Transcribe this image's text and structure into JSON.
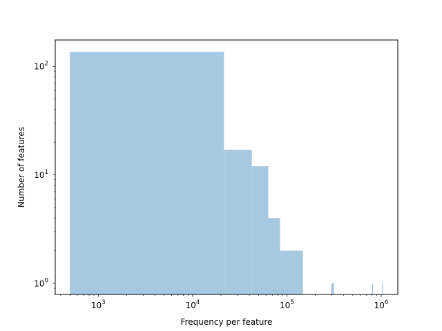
{
  "chart_data": {
    "type": "bar",
    "title": "",
    "xlabel": "Frequency per feature",
    "ylabel": "Number of features",
    "x_scale": "log",
    "y_scale": "log",
    "xlim": [
      350,
      1500000
    ],
    "ylim": [
      0.79,
      175
    ],
    "grid": false,
    "color": "#a6c8e0",
    "x_ticks": [
      {
        "value": 1000,
        "base": "10",
        "exp": "3"
      },
      {
        "value": 10000,
        "base": "10",
        "exp": "4"
      },
      {
        "value": 100000,
        "base": "10",
        "exp": "5"
      },
      {
        "value": 1000000,
        "base": "10",
        "exp": "6"
      }
    ],
    "y_ticks": [
      {
        "value": 1,
        "base": "10",
        "exp": "0"
      },
      {
        "value": 10,
        "base": "10",
        "exp": "1"
      },
      {
        "value": 100,
        "base": "10",
        "exp": "2"
      }
    ],
    "bins": [
      {
        "x0": 500,
        "x1": 21500,
        "count": 136
      },
      {
        "x0": 21500,
        "x1": 42500,
        "count": 17
      },
      {
        "x0": 42500,
        "x1": 63500,
        "count": 12
      },
      {
        "x0": 63500,
        "x1": 84500,
        "count": 4
      },
      {
        "x0": 84500,
        "x1": 148000,
        "count": 2
      },
      {
        "x0": 295000,
        "x1": 316000,
        "count": 1
      },
      {
        "x0": 800000,
        "x1": 821000,
        "count": 1
      },
      {
        "x0": 1026000,
        "x1": 1032000,
        "count": 1
      }
    ]
  }
}
